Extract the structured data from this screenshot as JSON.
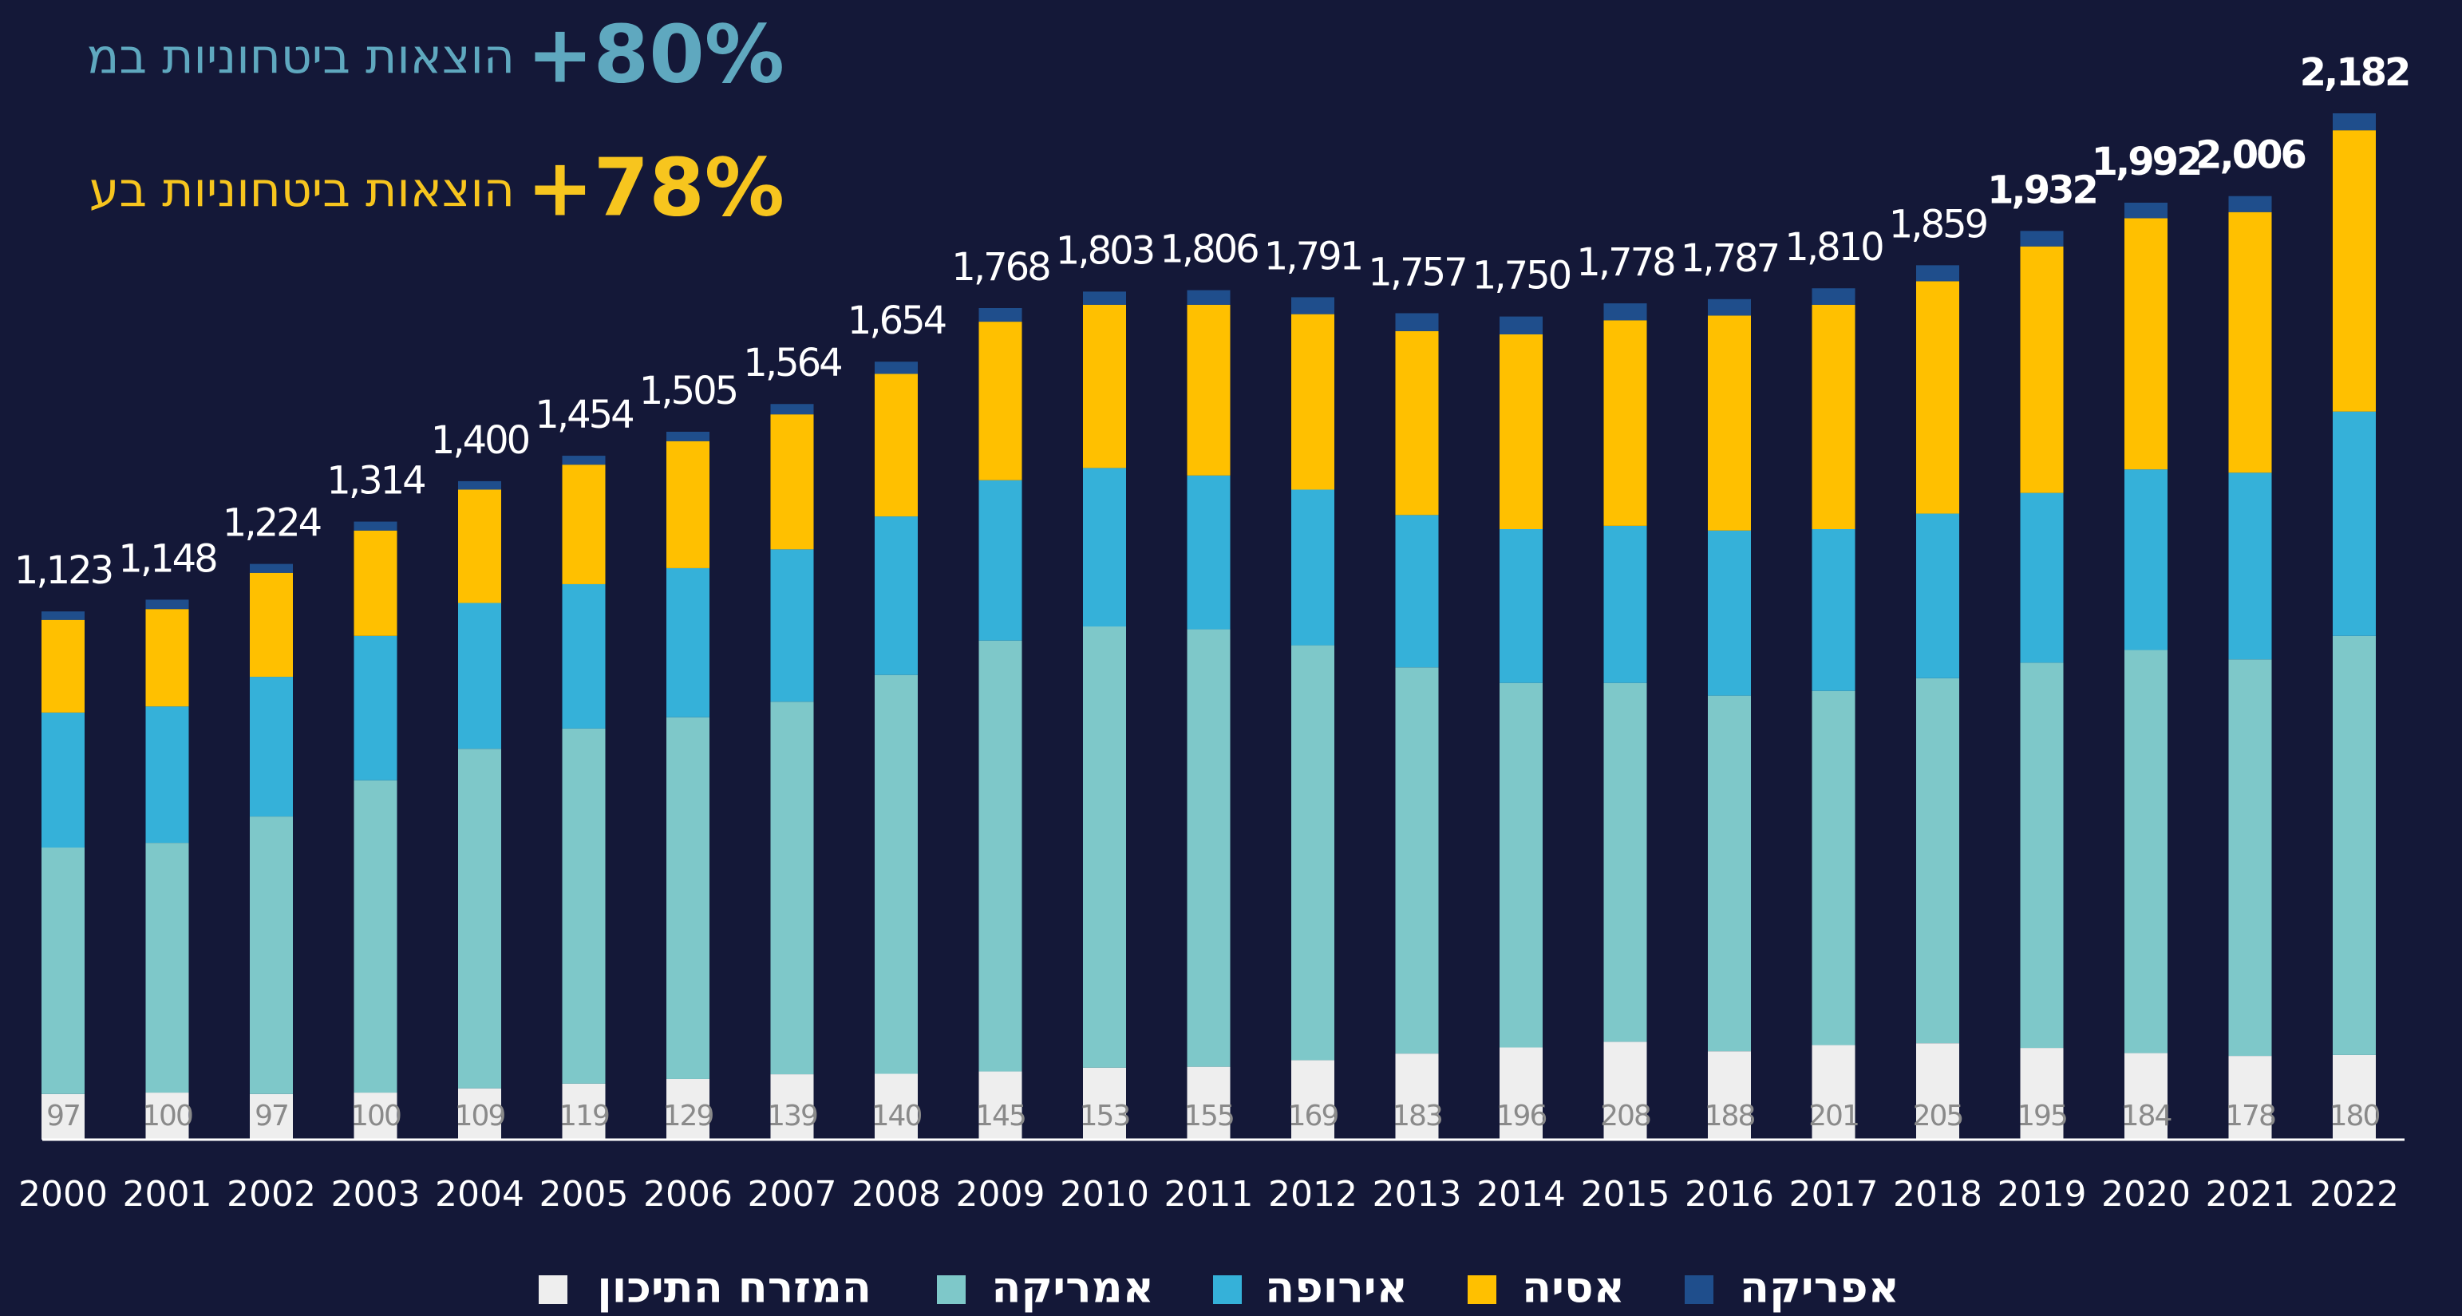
{
  "chart_data": {
    "type": "stacked_bar",
    "headlines": [
      {
        "value": "+80%",
        "text": "הוצאות ביטחוניות במ",
        "color": "#5fa8bf"
      },
      {
        "value": "+78%",
        "text": "הוצאות ביטחוניות בע",
        "color": "#f7c51e"
      }
    ],
    "categories": [
      "2000",
      "2001",
      "2002",
      "2003",
      "2004",
      "2005",
      "2006",
      "2007",
      "2008",
      "2009",
      "2010",
      "2011",
      "2012",
      "2013",
      "2014",
      "2015",
      "2016",
      "2017",
      "2018",
      "2019",
      "2020",
      "2021",
      "2022"
    ],
    "series": [
      {
        "name": "המזרח התיכון",
        "color": "#eeeeee",
        "values": [
          97,
          100,
          97,
          100,
          109,
          119,
          129,
          139,
          140,
          145,
          153,
          155,
          169,
          183,
          196,
          208,
          188,
          201,
          205,
          195,
          184,
          178,
          180
        ]
      },
      {
        "name": "אמריקה",
        "color": "#7ec8c9",
        "values": [
          524,
          531,
          590,
          664,
          722,
          755,
          769,
          792,
          848,
          916,
          938,
          930,
          882,
          821,
          775,
          763,
          756,
          753,
          776,
          819,
          857,
          843,
          891
        ]
      },
      {
        "name": "אירופה",
        "color": "#35b1d9",
        "values": [
          287,
          290,
          297,
          307,
          310,
          307,
          317,
          324,
          337,
          341,
          337,
          327,
          331,
          324,
          327,
          334,
          351,
          344,
          350,
          361,
          384,
          397,
          477
        ]
      },
      {
        "name": "אסיה",
        "color": "#ffc000",
        "values": [
          197,
          207,
          221,
          224,
          241,
          254,
          270,
          287,
          303,
          337,
          347,
          363,
          373,
          391,
          414,
          437,
          457,
          477,
          494,
          524,
          534,
          554,
          598
        ]
      },
      {
        "name": "אפריקה",
        "color": "#1f4e8c",
        "values": [
          18,
          20,
          19,
          19,
          18,
          19,
          20,
          22,
          26,
          29,
          28,
          31,
          36,
          38,
          38,
          36,
          35,
          35,
          34,
          33,
          33,
          34,
          36
        ]
      }
    ],
    "totals": [
      1123,
      1148,
      1224,
      1314,
      1400,
      1454,
      1505,
      1564,
      1654,
      1768,
      1803,
      1806,
      1791,
      1757,
      1750,
      1778,
      1787,
      1810,
      1859,
      1932,
      1992,
      2006,
      2182
    ],
    "total_labels": [
      "1,123",
      "1,148",
      "1,224",
      "1,314",
      "1,400",
      "1,454",
      "1,505",
      "1,564",
      "1,654",
      "1,768",
      "1,803",
      "1,806",
      "1,791",
      "1,757",
      "1,750",
      "1,778",
      "1,787",
      "1,810",
      "1,859",
      "1,932",
      "1,992",
      "2,006",
      "2,182"
    ]
  }
}
